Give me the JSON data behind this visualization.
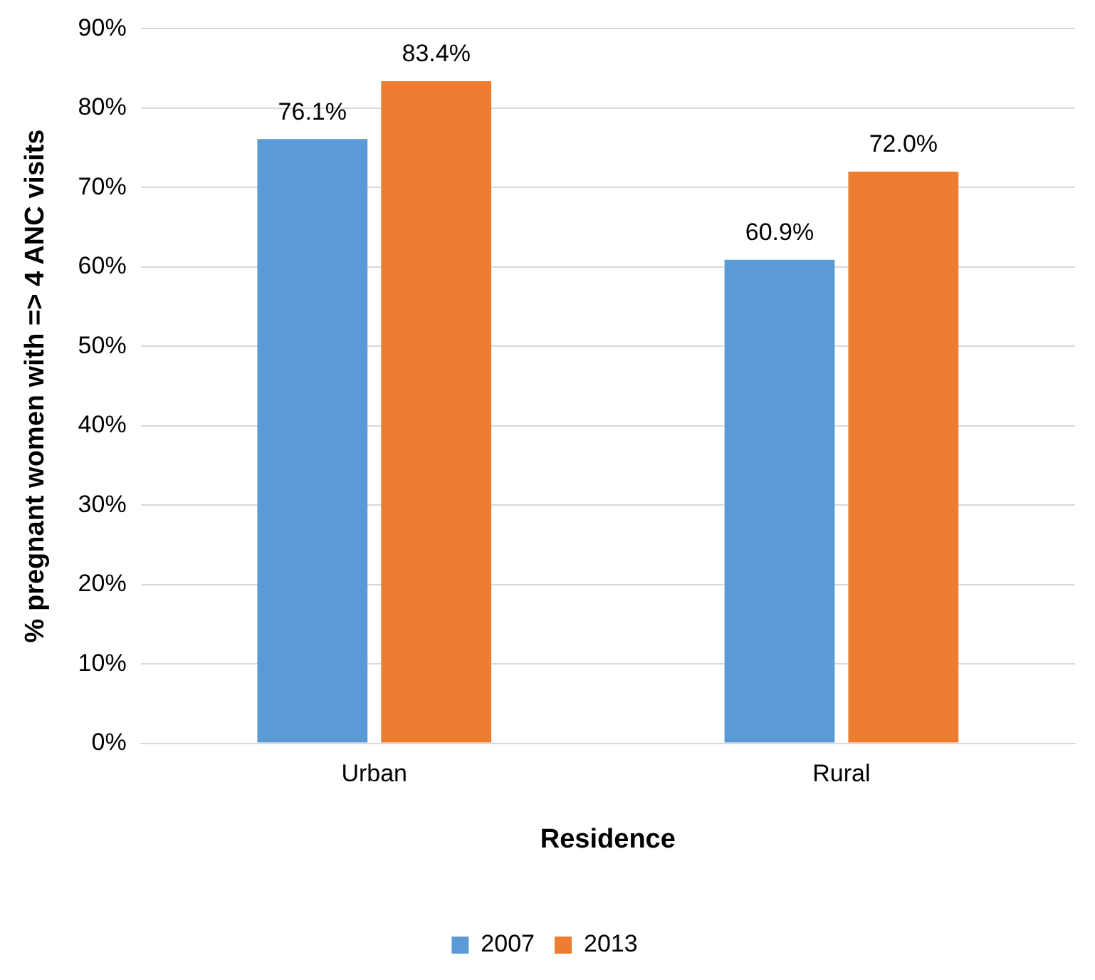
{
  "chart_data": {
    "type": "bar",
    "xlabel": "Residence",
    "ylabel": "% pregnant women with => 4 ANC visits",
    "categories": [
      "Urban",
      "Rural"
    ],
    "series": [
      {
        "name": "2007",
        "color": "#5b9bd5",
        "values": [
          76.1,
          60.9
        ],
        "value_labels": [
          "76.1%",
          "60.9%"
        ]
      },
      {
        "name": "2013",
        "color": "#ed7d31",
        "values": [
          83.4,
          72.0
        ],
        "value_labels": [
          "83.4%",
          "72.0%"
        ]
      }
    ],
    "ylim": [
      0,
      90
    ],
    "yticks": [
      {
        "value": 0,
        "label": "0%"
      },
      {
        "value": 10,
        "label": "10%"
      },
      {
        "value": 20,
        "label": "20%"
      },
      {
        "value": 30,
        "label": "30%"
      },
      {
        "value": 40,
        "label": "40%"
      },
      {
        "value": 50,
        "label": "50%"
      },
      {
        "value": 60,
        "label": "60%"
      },
      {
        "value": 70,
        "label": "70%"
      },
      {
        "value": 80,
        "label": "80%"
      },
      {
        "value": 90,
        "label": "90%"
      }
    ],
    "grid": "y",
    "legend": "bottom"
  }
}
